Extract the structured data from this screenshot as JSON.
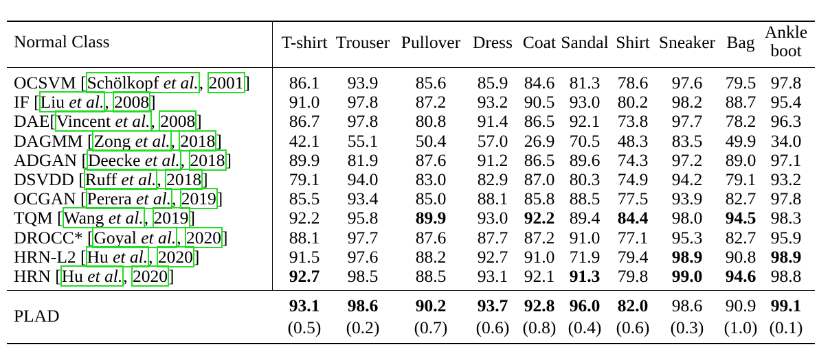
{
  "table": {
    "header_label": "Normal Class",
    "columns": [
      "T-shirt",
      "Trouser",
      "Pullover",
      "Dress",
      "Coat",
      "Sandal",
      "Shirt",
      "Sneaker",
      "Bag",
      "Ankle boot"
    ],
    "rows": [
      {
        "name": "OCSVM",
        "cite_open": " [",
        "cite_author": "Schölkopf",
        "etal": " et al.",
        "sep": ", ",
        "year": "2001",
        "cite_close": "]",
        "values": [
          "86.1",
          "93.9",
          "85.6",
          "85.9",
          "84.6",
          "81.3",
          "78.6",
          "97.6",
          "79.5",
          "97.8"
        ],
        "bold": []
      },
      {
        "name": "IF",
        "cite_open": " [",
        "cite_author": "Liu",
        "etal": " et al.",
        "sep": ", ",
        "year": "2008",
        "cite_close": "]",
        "values": [
          "91.0",
          "97.8",
          "87.2",
          "93.2",
          "90.5",
          "93.0",
          "80.2",
          "98.2",
          "88.7",
          "95.4"
        ],
        "bold": []
      },
      {
        "name": "DAE",
        "cite_open": "[",
        "cite_author": "Vincent",
        "etal": " et al.",
        "sep": ", ",
        "year": "2008",
        "cite_close": "]",
        "values": [
          "86.7",
          "97.8",
          "80.8",
          "91.4",
          "86.5",
          "92.1",
          "73.8",
          "97.7",
          "78.2",
          "96.3"
        ],
        "bold": []
      },
      {
        "name": "DAGMM",
        "cite_open": " [",
        "cite_author": "Zong",
        "etal": " et al.",
        "sep": ", ",
        "year": "2018",
        "cite_close": "]",
        "values": [
          "42.1",
          "55.1",
          "50.4",
          "57.0",
          "26.9",
          "70.5",
          "48.3",
          "83.5",
          "49.9",
          "34.0"
        ],
        "bold": []
      },
      {
        "name": "ADGAN",
        "cite_open": " [",
        "cite_author": "Deecke",
        "etal": " et al.",
        "sep": ", ",
        "year": "2018",
        "cite_close": "]",
        "values": [
          "89.9",
          "81.9",
          "87.6",
          "91.2",
          "86.5",
          "89.6",
          "74.3",
          "97.2",
          "89.0",
          "97.1"
        ],
        "bold": []
      },
      {
        "name": "DSVDD",
        "cite_open": " [",
        "cite_author": "Ruff",
        "etal": " et al.",
        "sep": ", ",
        "year": "2018",
        "cite_close": "]",
        "values": [
          "79.1",
          "94.0",
          "83.0",
          "82.9",
          "87.0",
          "80.3",
          "74.9",
          "94.2",
          "79.1",
          "93.2"
        ],
        "bold": []
      },
      {
        "name": "OCGAN",
        "cite_open": " [",
        "cite_author": "Perera",
        "etal": " et al.",
        "sep": ", ",
        "year": "2019",
        "cite_close": "]",
        "values": [
          "85.5",
          "93.4",
          "85.0",
          "88.1",
          "85.8",
          "88.5",
          "77.5",
          "93.9",
          "82.7",
          "97.8"
        ],
        "bold": []
      },
      {
        "name": "TQM",
        "cite_open": " [",
        "cite_author": "Wang",
        "etal": " et al.",
        "sep": ", ",
        "year": "2019",
        "cite_close": "]",
        "values": [
          "92.2",
          "95.8",
          "89.9",
          "93.0",
          "92.2",
          "89.4",
          "84.4",
          "98.0",
          "94.5",
          "98.3"
        ],
        "bold": [
          2,
          4,
          6,
          8
        ]
      },
      {
        "name": "DROCC*",
        "cite_open": " [",
        "cite_author": "Goyal",
        "etal": " et al.",
        "sep": ", ",
        "year": "2020",
        "cite_close": "]",
        "values": [
          "88.1",
          "97.7",
          "87.6",
          "87.7",
          "87.2",
          "91.0",
          "77.1",
          "95.3",
          "82.7",
          "95.9"
        ],
        "bold": []
      },
      {
        "name": "HRN-L2",
        "cite_open": " [",
        "cite_author": "Hu",
        "etal": " et al.",
        "sep": ", ",
        "year": "2020",
        "cite_close": "]",
        "values": [
          "91.5",
          "97.6",
          "88.2",
          "92.7",
          "91.0",
          "71.9",
          "79.4",
          "98.9",
          "90.8",
          "98.9"
        ],
        "bold": [
          7,
          9
        ]
      },
      {
        "name": "HRN",
        "cite_open": " [",
        "cite_author": "Hu",
        "etal": " et al.",
        "sep": ", ",
        "year": "2020",
        "cite_close": "]",
        "values": [
          "92.7",
          "98.5",
          "88.5",
          "93.1",
          "92.1",
          "91.3",
          "79.8",
          "99.0",
          "94.6",
          "98.8"
        ],
        "bold": [
          0,
          5,
          7,
          8
        ]
      }
    ],
    "final": {
      "name": "PLAD",
      "values": [
        "93.1",
        "98.6",
        "90.2",
        "93.7",
        "92.8",
        "96.0",
        "82.0",
        "98.6",
        "90.9",
        "99.1"
      ],
      "bold": [
        0,
        1,
        2,
        3,
        4,
        5,
        6,
        9
      ],
      "std": [
        "(0.5)",
        "(0.2)",
        "(0.7)",
        "(0.6)",
        "(0.8)",
        "(0.4)",
        "(0.6)",
        "(0.3)",
        "(1.0)",
        "(0.1)"
      ]
    }
  }
}
